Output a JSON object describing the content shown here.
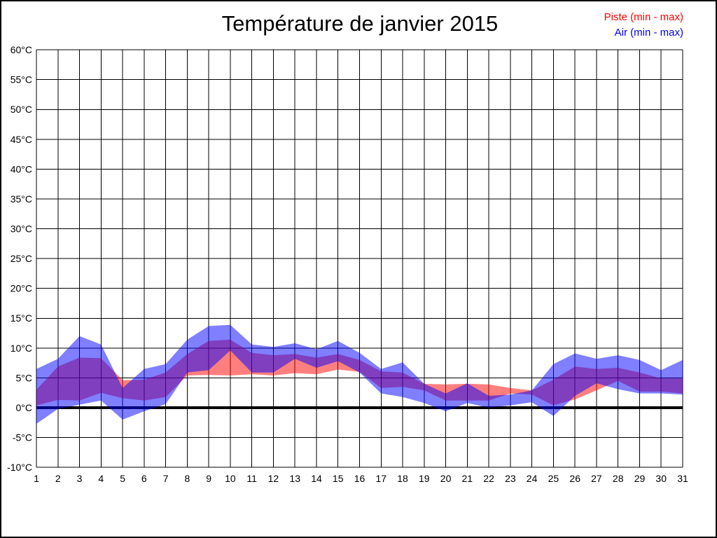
{
  "window": {
    "background_color": "#FFFFFF",
    "border_color": "#000000"
  },
  "chart": {
    "title": "Température de janvier 2015",
    "legend": [
      {
        "label": "Piste (min - max)",
        "color": "#FF0000"
      },
      {
        "label": "Air (min - max)",
        "color": "#0000FF"
      }
    ]
  },
  "chart_data": {
    "type": "area",
    "subtype": "min-max-band",
    "title": "Température de janvier 2015",
    "xlabel": "",
    "ylabel": "",
    "x": [
      1,
      2,
      3,
      4,
      5,
      6,
      7,
      8,
      9,
      10,
      11,
      12,
      13,
      14,
      15,
      16,
      17,
      18,
      19,
      20,
      21,
      22,
      23,
      24,
      25,
      26,
      27,
      28,
      29,
      30,
      31
    ],
    "x_tick_labels": [
      "1",
      "2",
      "3",
      "4",
      "5",
      "6",
      "7",
      "8",
      "9",
      "10",
      "11",
      "12",
      "13",
      "14",
      "15",
      "16",
      "17",
      "18",
      "19",
      "20",
      "21",
      "22",
      "23",
      "24",
      "25",
      "26",
      "27",
      "28",
      "29",
      "30",
      "31"
    ],
    "y_ticks": [
      -10,
      -5,
      0,
      5,
      10,
      15,
      20,
      25,
      30,
      35,
      40,
      45,
      50,
      55,
      60
    ],
    "y_tick_labels": [
      "-10°C",
      "-5°C",
      "0°C",
      "5°C",
      "10°C",
      "15°C",
      "20°C",
      "25°C",
      "30°C",
      "35°C",
      "40°C",
      "45°C",
      "50°C",
      "55°C",
      "60°C"
    ],
    "ylim": [
      -10,
      60
    ],
    "xlim": [
      1,
      31
    ],
    "grid": true,
    "grid_color": "#000000",
    "zero_line": {
      "value": 0,
      "color": "#000000",
      "width": 4
    },
    "legend_position": "top-right",
    "series": [
      {
        "name": "Piste (min - max)",
        "band_color": "#FF0000",
        "opacity": 0.5,
        "min": [
          0.4,
          1.3,
          1.2,
          2.5,
          1.6,
          1.2,
          1.8,
          5.4,
          5.5,
          5.4,
          5.6,
          5.4,
          5.8,
          5.6,
          6.4,
          6.0,
          3.3,
          3.5,
          2.9,
          1.2,
          1.2,
          1.2,
          2.4,
          2.2,
          0.4,
          1.4,
          2.9,
          4.5,
          2.7,
          2.7,
          2.4
        ],
        "max": [
          3.0,
          6.9,
          8.4,
          8.3,
          4.6,
          4.7,
          5.9,
          9.0,
          11.2,
          11.4,
          9.2,
          8.8,
          9.0,
          8.4,
          9.0,
          8.0,
          6.1,
          5.9,
          4.0,
          3.9,
          4.0,
          3.9,
          3.3,
          2.9,
          4.7,
          6.9,
          6.5,
          6.7,
          5.9,
          4.9,
          4.9
        ]
      },
      {
        "name": "Air (min - max)",
        "band_color": "#0000FF",
        "opacity": 0.5,
        "min": [
          -2.7,
          -0.2,
          0.5,
          1.2,
          -2.0,
          -0.6,
          0.6,
          5.9,
          6.3,
          9.6,
          5.9,
          5.9,
          8.2,
          6.7,
          7.8,
          5.9,
          2.4,
          1.8,
          0.8,
          -0.6,
          0.8,
          0.0,
          0.4,
          0.9,
          -1.4,
          2.0,
          4.1,
          3.1,
          2.4,
          2.4,
          2.2
        ],
        "max": [
          6.5,
          8.2,
          12.0,
          10.6,
          3.3,
          6.5,
          7.3,
          11.4,
          13.7,
          13.9,
          10.6,
          10.2,
          10.8,
          9.8,
          11.2,
          9.2,
          6.5,
          7.6,
          4.0,
          2.4,
          4.1,
          2.0,
          2.2,
          2.9,
          7.3,
          9.1,
          8.2,
          8.8,
          8.0,
          6.3,
          8.0
        ]
      }
    ]
  }
}
